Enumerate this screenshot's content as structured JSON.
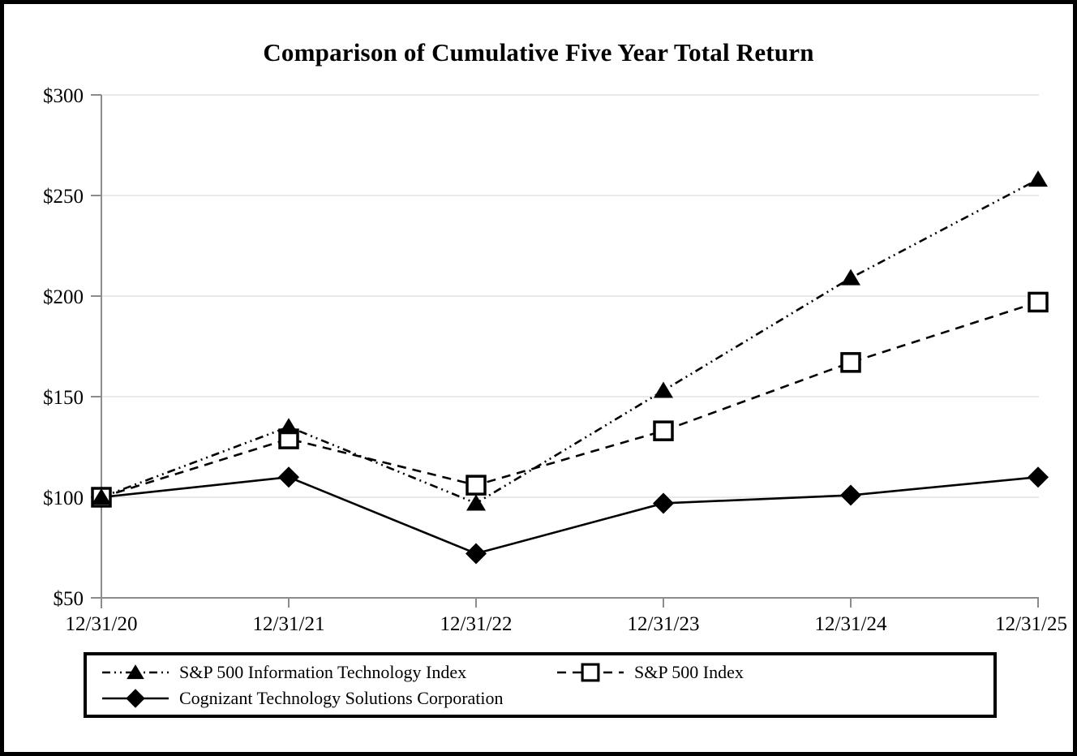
{
  "chart_data": {
    "type": "line",
    "title": "Comparison of Cumulative Five Year Total Return",
    "x": [
      "12/31/20",
      "12/31/21",
      "12/31/22",
      "12/31/23",
      "12/31/24",
      "12/31/25"
    ],
    "series": [
      {
        "name": "S&P 500 Information Technology Index",
        "marker": "filled-triangle",
        "line_style": "dash-dot-dot",
        "values": [
          100,
          135,
          97,
          153,
          209,
          258
        ]
      },
      {
        "name": "S&P 500 Index",
        "marker": "open-square",
        "line_style": "dashed",
        "values": [
          100,
          129,
          106,
          133,
          167,
          197
        ]
      },
      {
        "name": "Cognizant Technology Solutions Corporation",
        "marker": "filled-diamond",
        "line_style": "solid",
        "values": [
          100,
          110,
          72,
          97,
          101,
          110
        ]
      }
    ],
    "xlabel": "",
    "ylabel": "",
    "ylim": [
      50,
      300
    ],
    "ytick_values": [
      50,
      100,
      150,
      200,
      250,
      300
    ],
    "ytick_labels": [
      "$50",
      "$100",
      "$150",
      "$200",
      "$250",
      "$300"
    ],
    "xtick_labels": [
      "12/31/20",
      "12/31/21",
      "12/31/22",
      "12/31/23",
      "12/31/24",
      "12/31/25"
    ],
    "grid": "horizontal",
    "legend_position": "bottom-boxed",
    "colors": {
      "series": "#000000",
      "grid": "#e9e9e9",
      "axis": "#8c8c8c",
      "text": "#000000"
    }
  }
}
